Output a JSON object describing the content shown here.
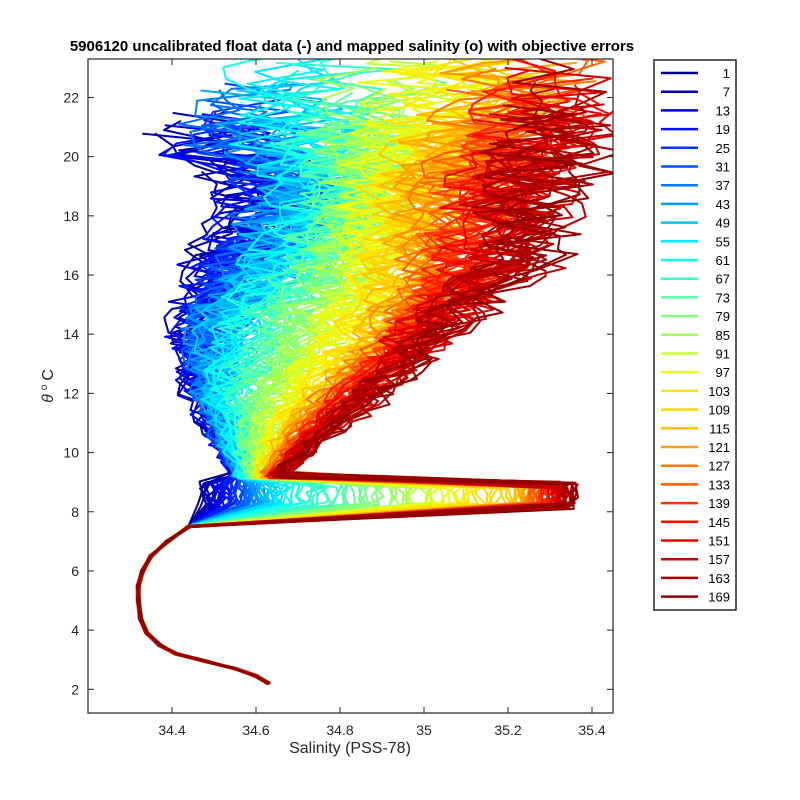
{
  "chart_data": {
    "type": "line",
    "title": "5906120 uncalibrated float data (-) and mapped salinity (o) with objective errors",
    "xlabel": "Salinity (PSS-78)",
    "ylabel_symbol": "θ",
    "ylabel_unit": "C",
    "xlim": [
      34.2,
      35.45
    ],
    "ylim": [
      1.2,
      23.3
    ],
    "x_ticks": [
      "34.4",
      "34.6",
      "34.8",
      "35",
      "35.2",
      "35.4"
    ],
    "y_ticks": [
      "2",
      "4",
      "6",
      "8",
      "10",
      "12",
      "14",
      "16",
      "18",
      "20",
      "22"
    ],
    "grid": false,
    "legend_position": "outside-right",
    "colormap": "jet",
    "series_labels": [
      "1",
      "7",
      "13",
      "19",
      "25",
      "31",
      "37",
      "43",
      "49",
      "55",
      "61",
      "67",
      "73",
      "79",
      "85",
      "91",
      "97",
      "103",
      "109",
      "115",
      "121",
      "127",
      "133",
      "139",
      "145",
      "151",
      "157",
      "163",
      "169"
    ],
    "legend_colors": [
      "#00008f",
      "#0000b8",
      "#0000e3",
      "#000fff",
      "#0033ff",
      "#0057ff",
      "#007bff",
      "#009fff",
      "#00c3ff",
      "#00e7ff",
      "#13ffeb",
      "#37ffc7",
      "#5bffa3",
      "#7fff7f",
      "#a3ff5b",
      "#c7ff37",
      "#ebff13",
      "#ffe700",
      "#ffd700",
      "#ffc300",
      "#ff9f00",
      "#ff7b00",
      "#ff5700",
      "#ff3300",
      "#ff0f00",
      "#e30000",
      "#c80000",
      "#b00000",
      "#8f0000"
    ],
    "deep_profile": [
      [
        34.63,
        2.2
      ],
      [
        34.6,
        2.45
      ],
      [
        34.55,
        2.7
      ],
      [
        34.48,
        2.95
      ],
      [
        34.41,
        3.2
      ],
      [
        34.37,
        3.5
      ],
      [
        34.34,
        3.9
      ],
      [
        34.325,
        4.4
      ],
      [
        34.32,
        5.0
      ],
      [
        34.32,
        5.5
      ],
      [
        34.33,
        6.0
      ],
      [
        34.35,
        6.5
      ],
      [
        34.39,
        7.0
      ],
      [
        34.44,
        7.5
      ],
      [
        34.5,
        8.0
      ],
      [
        34.55,
        8.5
      ]
    ],
    "profile_endpoints": [
      {
        "salinity": [
          34.56,
          34.48,
          34.45,
          34.52,
          34.62,
          34.55,
          34.47
        ],
        "theta": [
          9.0,
          11.5,
          14.0,
          16.5,
          18.5,
          19.9,
          19.5
        ]
      },
      {
        "salinity": [
          34.58,
          34.52,
          34.55,
          34.7,
          34.78,
          34.72,
          34.66
        ],
        "theta": [
          9.0,
          11.8,
          14.5,
          17.0,
          19.0,
          20.5,
          22.1
        ]
      },
      {
        "salinity": [
          34.62,
          34.7,
          34.85,
          34.96,
          34.98,
          35.04,
          35.22
        ],
        "theta": [
          9.0,
          11.0,
          13.0,
          15.2,
          17.5,
          19.5,
          22.4
        ]
      },
      {
        "salinity": [
          34.64,
          34.82,
          34.98,
          35.12,
          35.24,
          35.36
        ],
        "theta": [
          9.0,
          11.2,
          13.2,
          15.0,
          16.2,
          21.9
        ]
      }
    ]
  }
}
